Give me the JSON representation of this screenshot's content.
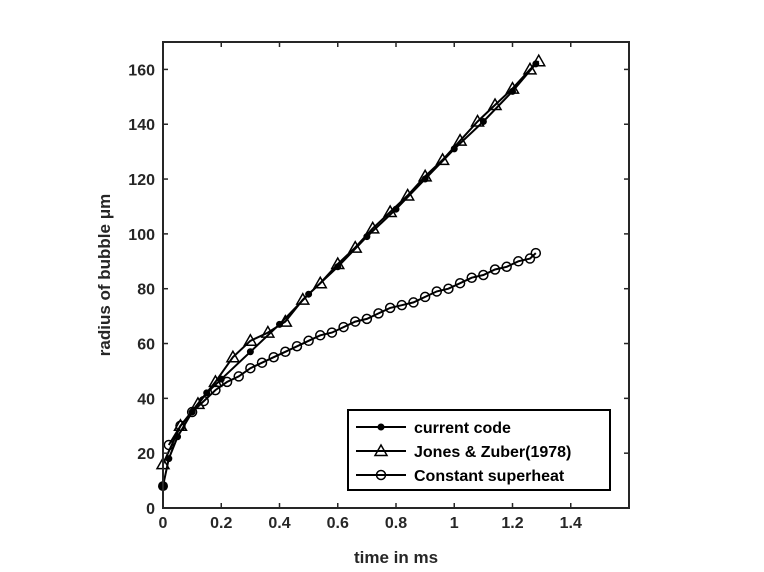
{
  "chart_data": {
    "type": "line",
    "xlabel": "time in ms",
    "ylabel": "radius of bubble μm",
    "xlim": [
      0,
      1.6
    ],
    "ylim": [
      0,
      170
    ],
    "xticks": [
      0,
      0.2,
      0.4,
      0.6,
      0.8,
      1,
      1.2,
      1.4
    ],
    "xtick_labels": [
      "0",
      "0.2",
      "0.4",
      "0.6",
      "0.8",
      "1",
      "1.2",
      "1.4"
    ],
    "yticks": [
      0,
      20,
      40,
      60,
      80,
      100,
      120,
      140,
      160
    ],
    "ytick_labels": [
      "0",
      "20",
      "40",
      "60",
      "80",
      "100",
      "120",
      "140",
      "160"
    ],
    "grid": false,
    "legend_position": "bottom-right",
    "series": [
      {
        "name": "current code",
        "marker": "filled-dot",
        "x": [
          0,
          0.02,
          0.05,
          0.1,
          0.15,
          0.2,
          0.3,
          0.4,
          0.5,
          0.6,
          0.7,
          0.8,
          0.9,
          1.0,
          1.1,
          1.2,
          1.28
        ],
        "y": [
          8,
          18,
          26,
          35,
          42,
          47,
          57,
          67,
          78,
          88,
          99,
          109,
          120,
          131,
          141,
          152,
          162
        ]
      },
      {
        "name": "Jones & Zuber(1978)",
        "marker": "open-triangle",
        "x": [
          0,
          0.06,
          0.12,
          0.18,
          0.24,
          0.3,
          0.36,
          0.42,
          0.48,
          0.54,
          0.6,
          0.66,
          0.72,
          0.78,
          0.84,
          0.9,
          0.96,
          1.02,
          1.08,
          1.14,
          1.2,
          1.26,
          1.29
        ],
        "y": [
          16,
          30,
          38,
          46,
          55,
          61,
          64,
          68,
          76,
          82,
          89,
          95,
          102,
          108,
          114,
          121,
          127,
          134,
          141,
          147,
          153,
          160,
          163
        ]
      },
      {
        "name": "Constant superheat",
        "marker": "open-circle",
        "x": [
          0.02,
          0.06,
          0.1,
          0.14,
          0.18,
          0.22,
          0.26,
          0.3,
          0.34,
          0.38,
          0.42,
          0.46,
          0.5,
          0.54,
          0.58,
          0.62,
          0.66,
          0.7,
          0.74,
          0.78,
          0.82,
          0.86,
          0.9,
          0.94,
          0.98,
          1.02,
          1.06,
          1.1,
          1.14,
          1.18,
          1.22,
          1.26,
          1.28
        ],
        "y": [
          23,
          30,
          35,
          39,
          43,
          46,
          48,
          51,
          53,
          55,
          57,
          59,
          61,
          63,
          64,
          66,
          68,
          69,
          71,
          73,
          74,
          75,
          77,
          79,
          80,
          82,
          84,
          85,
          87,
          88,
          90,
          91,
          93
        ]
      }
    ]
  }
}
